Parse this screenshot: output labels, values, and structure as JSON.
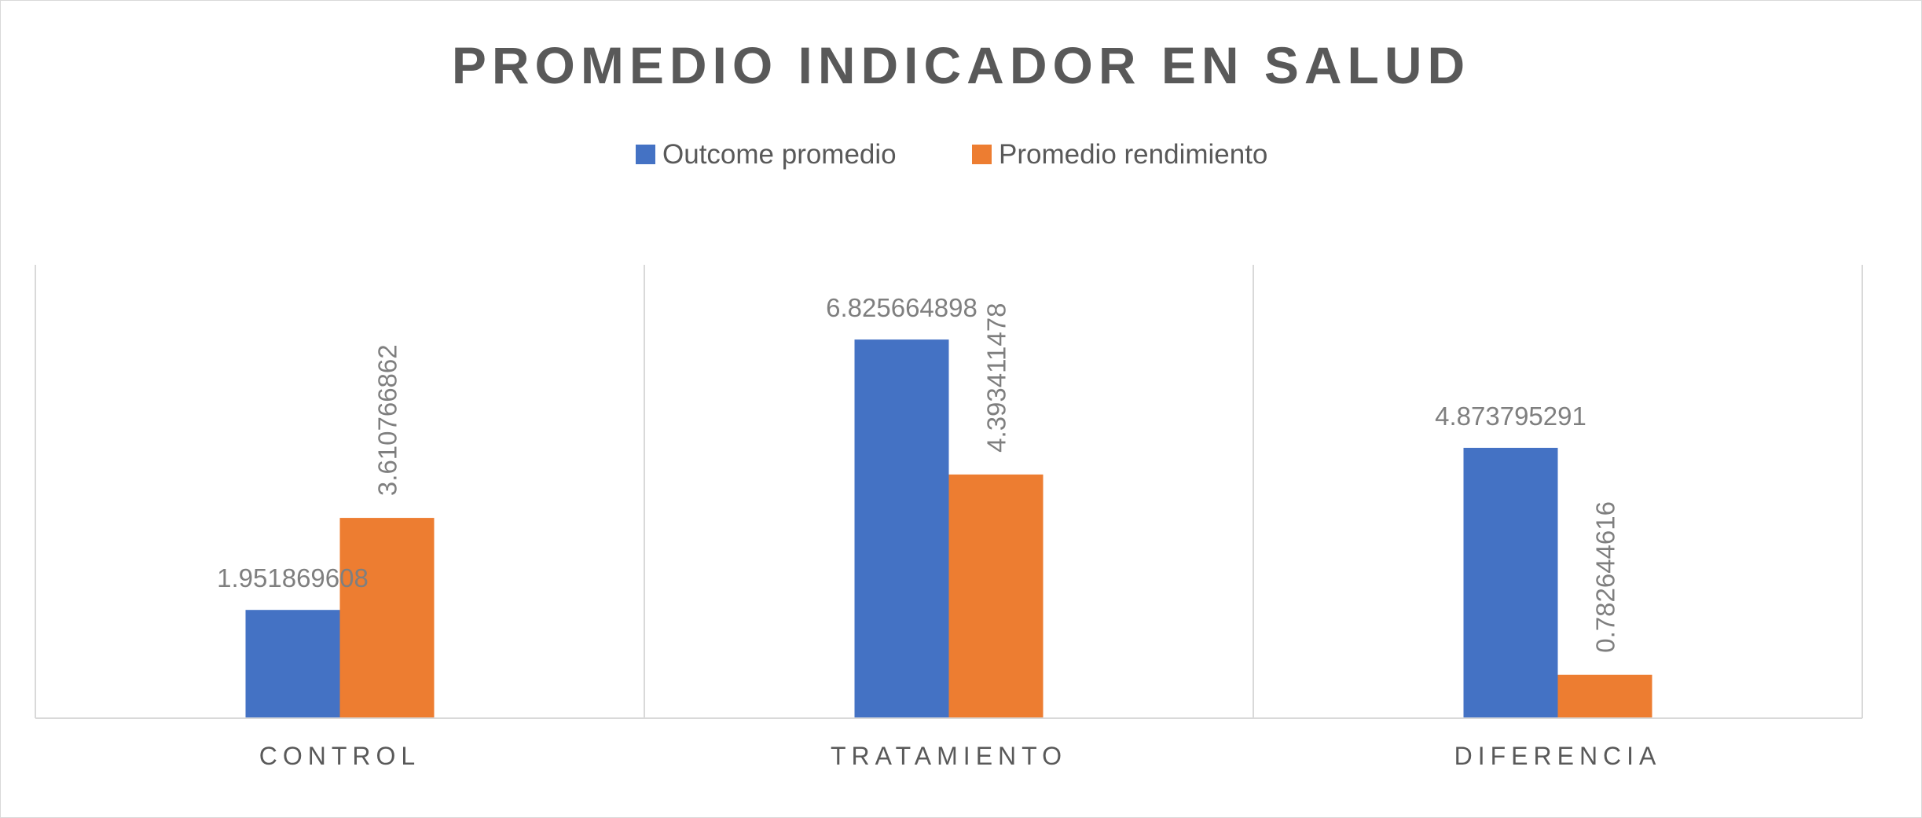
{
  "chart_data": {
    "type": "bar",
    "title": "PROMEDIO INDICADOR EN SALUD",
    "categories": [
      "CONTROL",
      "TRATAMIENTO",
      "DIFERENCIA"
    ],
    "series": [
      {
        "name": "Outcome promedio",
        "color": "#4472C4",
        "values": [
          1.951869608,
          6.825664898,
          4.873795291
        ],
        "labels": [
          "1.951869608",
          "6.825664898",
          "4.873795291"
        ],
        "label_orientation": "horizontal"
      },
      {
        "name": "Promedio rendimiento",
        "color": "#ED7D31",
        "values": [
          3.610766862,
          4.393411478,
          0.782644616
        ],
        "labels": [
          "3.610766862",
          "4.393411478",
          "0.782644616"
        ],
        "label_orientation": "vertical"
      }
    ],
    "ylim": [
      0,
      8
    ],
    "legend_position": "top",
    "grid": "vertical category dividers",
    "xlabel": "",
    "ylabel": ""
  }
}
